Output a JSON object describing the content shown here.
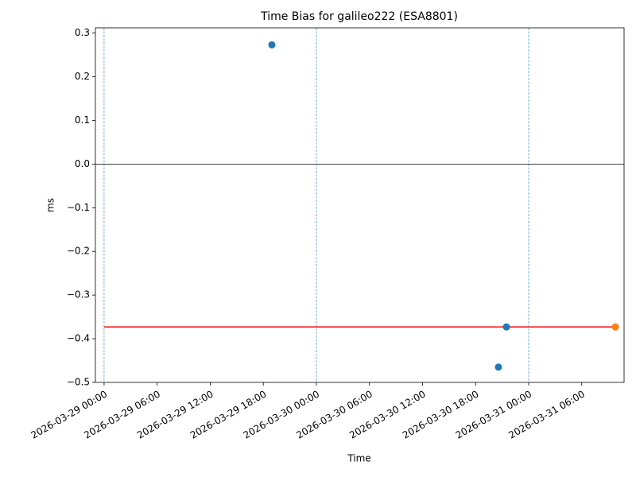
{
  "chart_data": {
    "type": "scatter",
    "title": "Time Bias for galileo222 (ESA8801)",
    "xlabel": "Time",
    "ylabel": "ms",
    "xlim": [
      "2026-03-28 23:01",
      "2026-03-31 10:47"
    ],
    "ylim": [
      -0.5,
      0.312
    ],
    "xticks": [
      "2026-03-29 00:00",
      "2026-03-29 06:00",
      "2026-03-29 12:00",
      "2026-03-29 18:00",
      "2026-03-30 00:00",
      "2026-03-30 06:00",
      "2026-03-30 12:00",
      "2026-03-30 18:00",
      "2026-03-31 00:00",
      "2026-03-31 06:00"
    ],
    "yticks": [
      {
        "value": -0.5,
        "label": "−0.5"
      },
      {
        "value": -0.4,
        "label": "−0.4"
      },
      {
        "value": -0.3,
        "label": "−0.3"
      },
      {
        "value": -0.2,
        "label": "−0.2"
      },
      {
        "value": -0.1,
        "label": "−0.1"
      },
      {
        "value": 0,
        "label": "0.0"
      },
      0.1,
      0.2,
      0.3
    ],
    "series": [
      {
        "color": "#1f77b4",
        "x": [
          "2026-03-29 18:58",
          "2026-03-30 20:35",
          "2026-03-30 21:29"
        ],
        "values": [
          0.273,
          -0.465,
          -0.373
        ]
      },
      {
        "color": "#ff7f0e",
        "x": [
          "2026-03-31 09:48"
        ],
        "values": [
          -0.373
        ]
      }
    ],
    "reference_line": {
      "color": "#ff0000",
      "x": [
        "2026-03-29 00:00",
        "2026-03-31 09:48"
      ],
      "values": [
        -0.373,
        -0.373
      ]
    },
    "hline": {
      "value": 0,
      "color": "#000000"
    },
    "vlines": {
      "color": "#1f77b4",
      "x": [
        "2026-03-29 00:00",
        "2026-03-30 00:00",
        "2026-03-31 00:00"
      ]
    }
  }
}
